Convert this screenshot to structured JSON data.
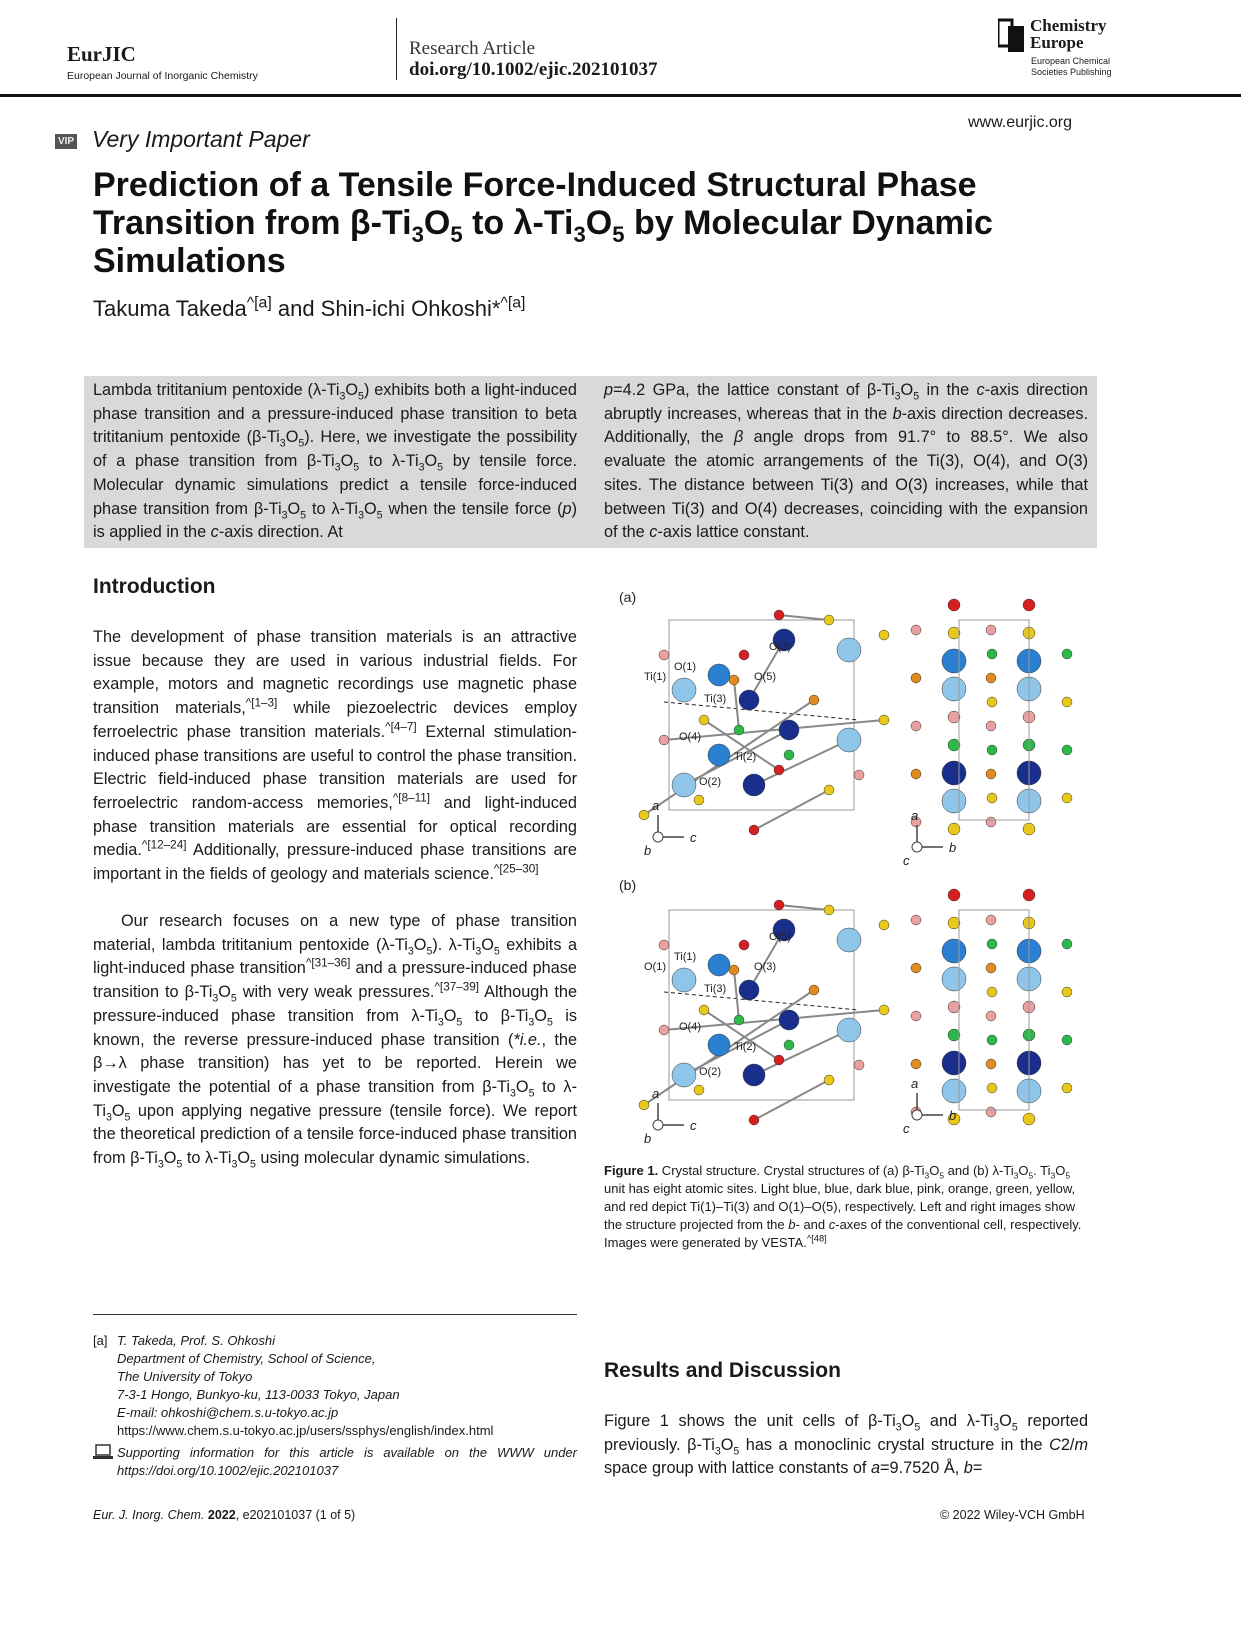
{
  "header": {
    "journal": "EurJIC",
    "journal_full": "European Journal of Inorganic Chemistry",
    "article_type": "Research Article",
    "doi": "doi.org/10.1002/ejic.202101037",
    "publisher_line1": "Chemistry",
    "publisher_line2": "Europe",
    "publisher_sub1": "European Chemical",
    "publisher_sub2": "Societies Publishing",
    "website": "www.eurjic.org"
  },
  "vip": {
    "badge": "VIP",
    "label": "Very Important Paper"
  },
  "title": [
    "Prediction of a Tensile Force-Induced Structural Phase Transition from β-Ti",
    "_3",
    "O",
    "_5",
    " to λ-Ti",
    "_3",
    "O",
    "_5",
    " by Molecular Dynamic Simulations"
  ],
  "authors": [
    "Takuma Takeda",
    "^[a]",
    " and Shin-ichi Ohkoshi*",
    "^[a]"
  ],
  "abstract": {
    "left": [
      "Lambda trititanium pentoxide (λ-Ti",
      "_3",
      "O",
      "_5",
      ") exhibits both a light-induced phase transition and a pressure-induced phase transition to beta trititanium pentoxide (β-Ti",
      "_3",
      "O",
      "_5",
      "). Here, we investigate the possibility of a phase transition from β-Ti",
      "_3",
      "O",
      "_5",
      " to λ-Ti",
      "_3",
      "O",
      "_5",
      " by tensile force. Molecular dynamic simulations predict a tensile force-induced phase transition from β-Ti",
      "_3",
      "O",
      "_5",
      " to λ-Ti",
      "_3",
      "O",
      "_5",
      " when the tensile force (",
      "*p",
      ") is applied in the ",
      "*c",
      "-axis direction. At"
    ],
    "right": [
      "*p",
      "=4.2 GPa, the lattice constant of β-Ti",
      "_3",
      "O",
      "_5",
      " in the ",
      "*c",
      "-axis direction abruptly increases, whereas that in the ",
      "*b",
      "-axis direction decreases. Additionally, the ",
      "*β",
      " angle drops from 91.7° to 88.5°. We also evaluate the atomic arrangements of the Ti(3), O(4), and O(3) sites. The distance between Ti(3) and O(3) increases, while that between Ti(3) and O(4) decreases, coinciding with the expansion of the ",
      "*c",
      "-axis lattice constant."
    ]
  },
  "introduction": {
    "heading": "Introduction",
    "p1": [
      "The development of phase transition materials is an attractive issue because they are used in various industrial fields. For example, motors and magnetic recordings use magnetic phase transition materials,",
      "^[1–3]",
      " while piezoelectric devices employ ferroelectric phase transition materials.",
      "^[4–7]",
      " External stimulation-induced phase transitions are useful to control the phase transition. Electric field-induced phase transition materials are used for ferroelectric random-access memories,",
      "^[8–11]",
      " and light-induced phase transition materials are essential for optical recording media.",
      "^[12–24]",
      " Additionally, pressure-induced phase transitions are important in the fields of geology and materials science.",
      "^[25–30]"
    ],
    "p2": [
      "Our research focuses on a new type of phase transition material, lambda trititanium pentoxide (λ-Ti",
      "_3",
      "O",
      "_5",
      "). λ-Ti",
      "_3",
      "O",
      "_5",
      " exhibits a light-induced phase transition",
      "^[31–36]",
      " and a pressure-induced phase transition to β-Ti",
      "_3",
      "O",
      "_5",
      " with very weak pressures.",
      "^[37–39]",
      " Although the pressure-induced phase transition from λ-Ti",
      "_3",
      "O",
      "_5",
      " to β-Ti",
      "_3",
      "O",
      "_5",
      " is known, the reverse pressure-induced phase transition (",
      "*i.e.",
      ", the β→λ phase transition) has yet to be reported. Herein we investigate the potential of a phase transition from β-Ti",
      "_3",
      "O",
      "_5",
      " to λ-Ti",
      "_3",
      "O",
      "_5",
      " upon applying negative pressure (tensile force). We report the theoretical prediction of a tensile force-induced phase transition from β-Ti",
      "_3",
      "O",
      "_5",
      " to λ-Ti",
      "_3",
      "O",
      "_5",
      " using molecular dynamic simulations."
    ]
  },
  "figure": {
    "panel_a": "(a)",
    "panel_b": "(b)",
    "labels_a": [
      "Ti(1)",
      "O(1)",
      "Ti(3)",
      "O(5)",
      "O(3)",
      "O(4)",
      "Ti(2)",
      "O(2)"
    ],
    "labels_b": [
      "O(1)",
      "Ti(1)",
      "Ti(3)",
      "O(3)",
      "O(5)",
      "O(4)",
      "Ti(2)",
      "O(2)"
    ],
    "axes_left": {
      "up": "a",
      "right": "c",
      "out": "b"
    },
    "axes_right": {
      "up": "a",
      "right": "b",
      "out": "c"
    },
    "atom_colors": {
      "ti1": "#8ec5e8",
      "ti2": "#2a7fd0",
      "ti3": "#1a2f8c",
      "o1": "#e8a0a0",
      "o2": "#e08a20",
      "o3": "#2db84a",
      "o4": "#e8c81a",
      "o5": "#d42020"
    },
    "caption": [
      "**Figure 1.",
      " Crystal structure. Crystal structures of (a) β-Ti",
      "_3",
      "O",
      "_5",
      " and (b) λ-Ti",
      "_3",
      "O",
      "_5",
      ". Ti",
      "_3",
      "O",
      "_5",
      " unit has eight atomic sites. Light blue, blue, dark blue, pink, orange, green, yellow, and red depict Ti(1)–Ti(3) and O(1)–O(5), respectively. Left and right images show the structure projected from the ",
      "*b",
      "- and ",
      "*c",
      "-axes of the conventional cell, respectively. Images were generated by VESTA.",
      "^[48]"
    ]
  },
  "results": {
    "heading": "Results and Discussion",
    "p1": [
      "Figure 1 shows the unit cells of β-Ti",
      "_3",
      "O",
      "_5",
      " and λ-Ti",
      "_3",
      "O",
      "_5",
      " reported previously. β-Ti",
      "_3",
      "O",
      "_5",
      " has a monoclinic crystal structure in the ",
      "*C",
      "2/",
      "*m",
      " space group with lattice constants of ",
      "*a",
      "=9.7520 Å, ",
      "*b",
      "="
    ]
  },
  "footnote": {
    "marker": "[a]",
    "lines": [
      "T. Takeda, Prof. S. Ohkoshi",
      "Department of Chemistry, School of Science,",
      "The University of Tokyo",
      "7-3-1 Hongo, Bunkyo-ku, 113-0033 Tokyo, Japan",
      "E-mail: ohkoshi@chem.s.u-tokyo.ac.jp"
    ],
    "url": "https://www.chem.s.u-tokyo.ac.jp/users/ssphys/english/index.html",
    "si_text": "Supporting information for this article is available on the WWW under https://doi.org/10.1002/ejic.202101037"
  },
  "footer": {
    "left_journal": "Eur. J. Inorg. Chem.",
    "left_year": "2022",
    "left_rest": ", e202101037 (1 of 5)",
    "right": "© 2022 Wiley-VCH GmbH"
  }
}
